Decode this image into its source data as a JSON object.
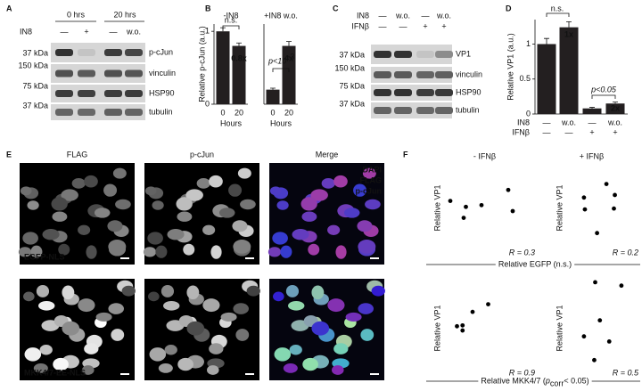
{
  "panel_labels": [
    "A",
    "B",
    "C",
    "D",
    "E",
    "F"
  ],
  "blot_a": {
    "time_labels": [
      "0 hrs",
      "20 hrs"
    ],
    "treatment_label": "IN8",
    "lanes": [
      "—",
      "+",
      "—",
      "w.o."
    ],
    "mw": [
      "37 kDa",
      "150 kDa",
      "75 kDa",
      "37 kDa"
    ],
    "proteins": [
      "p-cJun",
      "vinculin",
      "HSP90",
      "tubulin"
    ]
  },
  "blot_c": {
    "row_labels": [
      "IN8",
      "IFNβ"
    ],
    "in8_lanes": [
      "—",
      "w.o.",
      "—",
      "w.o."
    ],
    "ifnb_lanes": [
      "—",
      "—",
      "+",
      "+"
    ],
    "mw": [
      "37 kDa",
      "150 kDa",
      "75 kDa",
      "37 kDa"
    ],
    "proteins": [
      "VP1",
      "vinculin",
      "HSP90",
      "tubulin"
    ]
  },
  "images": {
    "columns": [
      "FLAG",
      "p-cJun",
      "Merge"
    ],
    "merge_legend": [
      "DAPI",
      "FLAG",
      "p-cJun"
    ],
    "rows": [
      "EGFP-NLS",
      "MKK4/7-EE-NLS"
    ]
  },
  "chart_data": [
    {
      "type": "bar",
      "title": "-IN8",
      "y_label": "Relative p-cJun (a.u.)",
      "x_label": "Hours",
      "categories": [
        "0",
        "20"
      ],
      "values": [
        1.0,
        0.8
      ],
      "errors": [
        0.05,
        0.04
      ],
      "color": "#231f20",
      "ylim": [
        0,
        1.1
      ],
      "yticks": [
        0,
        1
      ],
      "annotations": [
        {
          "text": "n.s."
        },
        {
          "text": "0.8x"
        }
      ]
    },
    {
      "type": "bar",
      "title": "+IN8 w.o.",
      "x_label": "Hours",
      "categories": [
        "0",
        "20"
      ],
      "values": [
        0.2,
        0.8
      ],
      "errors": [
        0.02,
        0.06
      ],
      "color": "#231f20",
      "ylim": [
        0,
        1.1
      ],
      "annotations": [
        {
          "text": "p<10",
          "sup": "-3"
        },
        {
          "text": "4x"
        }
      ]
    },
    {
      "type": "bar",
      "y_label": "Relative VP1 (a.u.)",
      "row_labels": [
        "IN8",
        "IFNβ"
      ],
      "categories": [
        "—",
        "w.o.",
        "—",
        "w.o."
      ],
      "categories2": [
        "—",
        "—",
        "+",
        "+"
      ],
      "values": [
        1.0,
        1.24,
        0.08,
        0.15
      ],
      "errors": [
        0.08,
        0.08,
        0.015,
        0.02
      ],
      "color": "#231f20",
      "ylim": [
        0,
        1.35
      ],
      "yticks": [
        0,
        0.5,
        1
      ],
      "annotations": [
        {
          "text": "n.s."
        },
        {
          "text": "1x"
        },
        {
          "text": "p<0.05"
        },
        {
          "text": "2x"
        }
      ]
    },
    {
      "type": "scatter",
      "title": "- IFNβ",
      "y_label": "Relative VP1",
      "x_label": {
        "text": "Relative EGFP (n.s.)"
      },
      "x": [
        0.16,
        0.28,
        0.3,
        0.44,
        0.68,
        0.72
      ],
      "values": [
        0.52,
        0.32,
        0.45,
        0.47,
        0.65,
        0.4
      ],
      "xlim": [
        0,
        1
      ],
      "ylim": [
        0,
        1
      ],
      "color": "#000000",
      "annotations": [
        {
          "text": "R = 0.3"
        }
      ]
    },
    {
      "type": "scatter",
      "title": "+ IFNβ",
      "y_label": "Relative VP1",
      "x": [
        0.38,
        0.39,
        0.52,
        0.62,
        0.7,
        0.71
      ],
      "values": [
        0.56,
        0.42,
        0.14,
        0.72,
        0.43,
        0.59
      ],
      "xlim": [
        0,
        1
      ],
      "ylim": [
        0,
        1
      ],
      "color": "#000000",
      "annotations": [
        {
          "text": "R = 0.2"
        }
      ]
    },
    {
      "type": "scatter",
      "y_label": "Relative VP1",
      "x_label": {
        "text": "Relative MKK4/7 (",
        "italic": "p",
        "sub": "corr",
        "tail": " < 0.05)"
      },
      "x": [
        0.22,
        0.27,
        0.27,
        0.36,
        0.5
      ],
      "values": [
        0.46,
        0.47,
        0.41,
        0.63,
        0.72
      ],
      "xlim": [
        0,
        1
      ],
      "ylim": [
        0,
        1
      ],
      "color": "#000000",
      "annotations": [
        {
          "text": "R = 0.9"
        }
      ]
    },
    {
      "type": "scatter",
      "y_label": "Relative VP1",
      "x": [
        0.38,
        0.49,
        0.5,
        0.55,
        0.65,
        0.78
      ],
      "values": [
        0.34,
        0.06,
        0.98,
        0.53,
        0.28,
        0.94
      ],
      "xlim": [
        0,
        1
      ],
      "ylim": [
        0,
        1
      ],
      "color": "#000000",
      "annotations": [
        {
          "text": "R = 0.5"
        }
      ]
    }
  ]
}
